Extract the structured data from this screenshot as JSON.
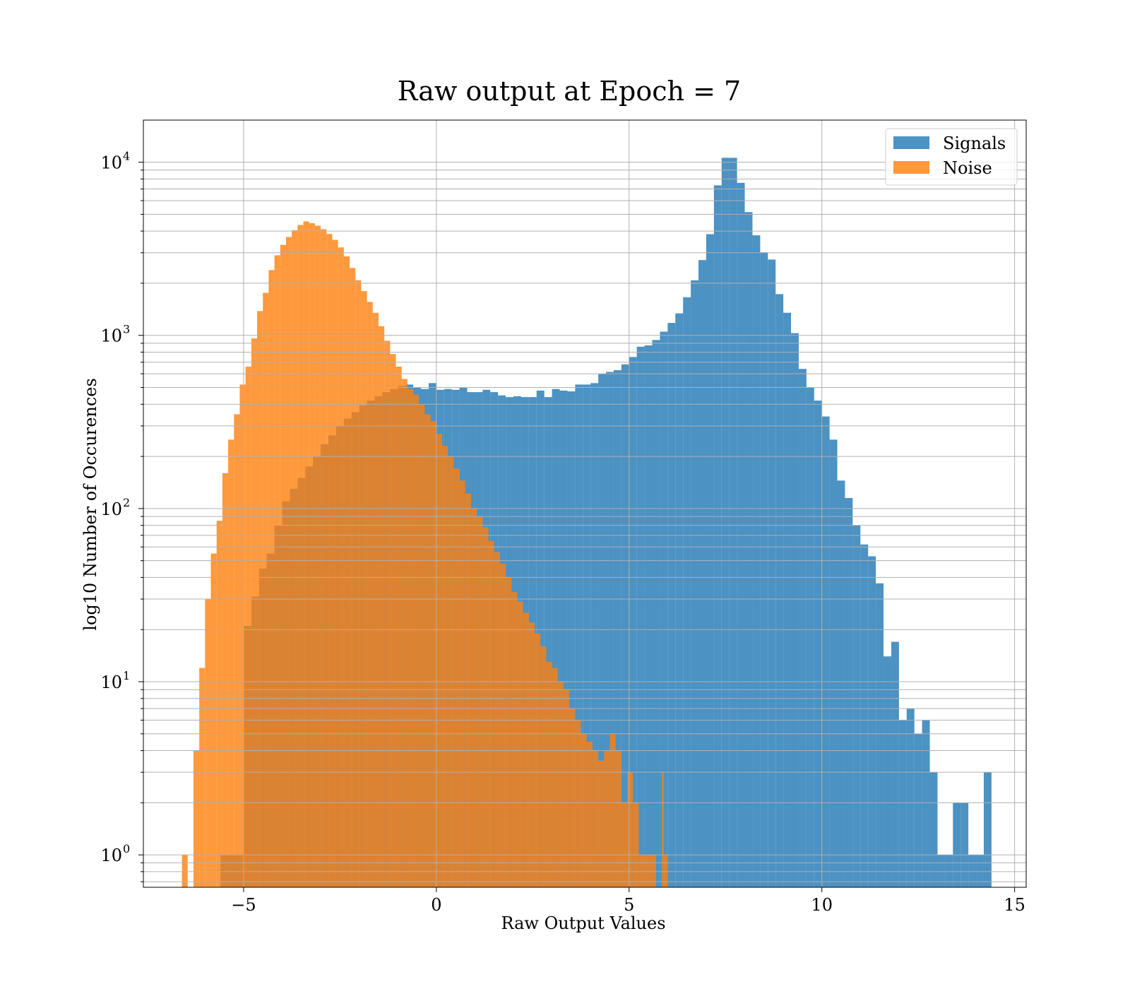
{
  "chart_data": {
    "type": "histogram",
    "title": "Raw output at Epoch = 7",
    "xlabel": "Raw Output Values",
    "ylabel": "log10 Number of Occurences",
    "xlim": [
      -7.6,
      15.3
    ],
    "ylim": [
      0.65,
      17500
    ],
    "yscale": "log",
    "grid": true,
    "legend_position": "top-right",
    "x_ticks": [
      {
        "value": -5,
        "label": "−5"
      },
      {
        "value": 0,
        "label": "0"
      },
      {
        "value": 5,
        "label": "5"
      },
      {
        "value": 10,
        "label": "10"
      },
      {
        "value": 15,
        "label": "15"
      }
    ],
    "y_ticks": [
      {
        "value": 1,
        "base": "10",
        "exp": "0"
      },
      {
        "value": 10,
        "base": "10",
        "exp": "1"
      },
      {
        "value": 100,
        "base": "10",
        "exp": "2"
      },
      {
        "value": 1000,
        "base": "10",
        "exp": "3"
      },
      {
        "value": 10000,
        "base": "10",
        "exp": "4"
      }
    ],
    "series": [
      {
        "name": "Signals",
        "color": "#1f77b4",
        "opacity": 0.8,
        "bins": [
          [
            -5.6,
            -5.0,
            1
          ],
          [
            -5.0,
            -4.8,
            21
          ],
          [
            -4.8,
            -4.6,
            31
          ],
          [
            -4.6,
            -4.4,
            45
          ],
          [
            -4.4,
            -4.2,
            55
          ],
          [
            -4.2,
            -4.0,
            80
          ],
          [
            -4.0,
            -3.8,
            110
          ],
          [
            -3.8,
            -3.6,
            130
          ],
          [
            -3.6,
            -3.4,
            150
          ],
          [
            -3.4,
            -3.2,
            175
          ],
          [
            -3.2,
            -3.0,
            200
          ],
          [
            -3.0,
            -2.8,
            235
          ],
          [
            -2.8,
            -2.6,
            265
          ],
          [
            -2.6,
            -2.4,
            300
          ],
          [
            -2.4,
            -2.2,
            330
          ],
          [
            -2.2,
            -2.0,
            360
          ],
          [
            -2.0,
            -1.8,
            395
          ],
          [
            -1.8,
            -1.6,
            420
          ],
          [
            -1.6,
            -1.4,
            445
          ],
          [
            -1.4,
            -1.2,
            470
          ],
          [
            -1.2,
            -1.0,
            490
          ],
          [
            -1.0,
            -0.8,
            510
          ],
          [
            -0.8,
            -0.6,
            520
          ],
          [
            -0.6,
            -0.4,
            500
          ],
          [
            -0.4,
            -0.2,
            490
          ],
          [
            -0.2,
            0.0,
            530
          ],
          [
            0.0,
            0.2,
            485
          ],
          [
            0.2,
            0.4,
            490
          ],
          [
            0.4,
            0.6,
            485
          ],
          [
            0.6,
            0.8,
            500
          ],
          [
            0.8,
            1.0,
            470
          ],
          [
            1.0,
            1.2,
            470
          ],
          [
            1.2,
            1.4,
            485
          ],
          [
            1.4,
            1.6,
            470
          ],
          [
            1.6,
            1.8,
            450
          ],
          [
            1.8,
            2.0,
            440
          ],
          [
            2.0,
            2.2,
            445
          ],
          [
            2.2,
            2.4,
            440
          ],
          [
            2.4,
            2.6,
            440
          ],
          [
            2.6,
            2.8,
            480
          ],
          [
            2.8,
            3.0,
            440
          ],
          [
            3.0,
            3.2,
            490
          ],
          [
            3.2,
            3.4,
            480
          ],
          [
            3.4,
            3.6,
            475
          ],
          [
            3.6,
            3.8,
            520
          ],
          [
            3.8,
            4.0,
            520
          ],
          [
            4.0,
            4.2,
            530
          ],
          [
            4.2,
            4.4,
            600
          ],
          [
            4.4,
            4.6,
            615
          ],
          [
            4.6,
            4.8,
            630
          ],
          [
            4.8,
            5.0,
            680
          ],
          [
            5.0,
            5.2,
            750
          ],
          [
            5.2,
            5.4,
            860
          ],
          [
            5.4,
            5.6,
            875
          ],
          [
            5.6,
            5.8,
            940
          ],
          [
            5.8,
            6.0,
            1050
          ],
          [
            6.0,
            6.2,
            1180
          ],
          [
            6.2,
            6.4,
            1340
          ],
          [
            6.4,
            6.6,
            1660
          ],
          [
            6.6,
            6.8,
            2080
          ],
          [
            6.8,
            7.0,
            2720
          ],
          [
            7.0,
            7.2,
            3840
          ],
          [
            7.2,
            7.4,
            7350
          ],
          [
            7.4,
            7.6,
            10600
          ],
          [
            7.6,
            7.8,
            10600
          ],
          [
            7.8,
            8.0,
            7600
          ],
          [
            8.0,
            8.2,
            5150
          ],
          [
            8.2,
            8.4,
            3780
          ],
          [
            8.4,
            8.6,
            3020
          ],
          [
            8.6,
            8.8,
            2740
          ],
          [
            8.8,
            9.0,
            1730
          ],
          [
            9.0,
            9.2,
            1350
          ],
          [
            9.2,
            9.4,
            1030
          ],
          [
            9.4,
            9.6,
            640
          ],
          [
            9.6,
            9.8,
            500
          ],
          [
            9.8,
            10.0,
            420
          ],
          [
            10.0,
            10.2,
            340
          ],
          [
            10.2,
            10.4,
            250
          ],
          [
            10.4,
            10.6,
            145
          ],
          [
            10.6,
            10.8,
            115
          ],
          [
            10.8,
            11.0,
            80
          ],
          [
            11.0,
            11.2,
            62
          ],
          [
            11.2,
            11.4,
            53
          ],
          [
            11.4,
            11.6,
            37
          ],
          [
            11.6,
            11.8,
            14
          ],
          [
            11.8,
            12.0,
            17
          ],
          [
            12.0,
            12.2,
            6
          ],
          [
            12.2,
            12.4,
            7
          ],
          [
            12.4,
            12.6,
            5
          ],
          [
            12.6,
            12.8,
            6
          ],
          [
            12.8,
            13.0,
            3
          ],
          [
            13.0,
            13.2,
            1
          ],
          [
            13.2,
            13.4,
            1
          ],
          [
            13.4,
            13.6,
            2
          ],
          [
            13.6,
            13.8,
            2
          ],
          [
            13.8,
            14.0,
            1
          ],
          [
            14.0,
            14.2,
            1
          ],
          [
            14.2,
            14.4,
            3
          ]
        ]
      },
      {
        "name": "Noise",
        "color": "#ff7f0e",
        "opacity": 0.8,
        "bins": [
          [
            -6.6,
            -6.45,
            1
          ],
          [
            -6.3,
            -6.15,
            4
          ],
          [
            -6.15,
            -6.0,
            12
          ],
          [
            -6.0,
            -5.85,
            30
          ],
          [
            -5.85,
            -5.7,
            55
          ],
          [
            -5.7,
            -5.55,
            85
          ],
          [
            -5.55,
            -5.4,
            160
          ],
          [
            -5.4,
            -5.25,
            250
          ],
          [
            -5.25,
            -5.1,
            350
          ],
          [
            -5.1,
            -4.95,
            520
          ],
          [
            -4.95,
            -4.8,
            660
          ],
          [
            -4.8,
            -4.65,
            960
          ],
          [
            -4.65,
            -4.5,
            1380
          ],
          [
            -4.5,
            -4.35,
            1760
          ],
          [
            -4.35,
            -4.2,
            2380
          ],
          [
            -4.2,
            -4.05,
            2900
          ],
          [
            -4.05,
            -3.9,
            3330
          ],
          [
            -3.9,
            -3.75,
            3700
          ],
          [
            -3.75,
            -3.6,
            4050
          ],
          [
            -3.6,
            -3.45,
            4340
          ],
          [
            -3.45,
            -3.3,
            4550
          ],
          [
            -3.3,
            -3.15,
            4440
          ],
          [
            -3.15,
            -3.0,
            4300
          ],
          [
            -3.0,
            -2.85,
            4100
          ],
          [
            -2.85,
            -2.7,
            3850
          ],
          [
            -2.7,
            -2.55,
            3560
          ],
          [
            -2.55,
            -2.4,
            3220
          ],
          [
            -2.4,
            -2.25,
            2860
          ],
          [
            -2.25,
            -2.1,
            2450
          ],
          [
            -2.1,
            -1.95,
            2080
          ],
          [
            -1.95,
            -1.8,
            1800
          ],
          [
            -1.8,
            -1.65,
            1560
          ],
          [
            -1.65,
            -1.5,
            1350
          ],
          [
            -1.5,
            -1.35,
            1130
          ],
          [
            -1.35,
            -1.2,
            930
          ],
          [
            -1.2,
            -1.05,
            780
          ],
          [
            -1.05,
            -0.9,
            660
          ],
          [
            -0.9,
            -0.75,
            560
          ],
          [
            -0.75,
            -0.6,
            490
          ],
          [
            -0.6,
            -0.45,
            455
          ],
          [
            -0.45,
            -0.3,
            400
          ],
          [
            -0.3,
            -0.15,
            350
          ],
          [
            -0.15,
            0.0,
            320
          ],
          [
            0.0,
            0.15,
            270
          ],
          [
            0.15,
            0.3,
            230
          ],
          [
            0.3,
            0.45,
            200
          ],
          [
            0.45,
            0.6,
            170
          ],
          [
            0.6,
            0.75,
            145
          ],
          [
            0.75,
            0.9,
            122
          ],
          [
            0.9,
            1.05,
            100
          ],
          [
            1.05,
            1.2,
            90
          ],
          [
            1.2,
            1.35,
            78
          ],
          [
            1.35,
            1.5,
            65
          ],
          [
            1.5,
            1.65,
            56
          ],
          [
            1.65,
            1.8,
            48
          ],
          [
            1.8,
            1.95,
            40
          ],
          [
            1.95,
            2.1,
            33
          ],
          [
            2.1,
            2.25,
            29
          ],
          [
            2.25,
            2.4,
            25
          ],
          [
            2.4,
            2.55,
            22
          ],
          [
            2.55,
            2.7,
            19
          ],
          [
            2.7,
            2.85,
            16
          ],
          [
            2.85,
            3.0,
            13
          ],
          [
            3.0,
            3.15,
            12
          ],
          [
            3.15,
            3.3,
            10
          ],
          [
            3.3,
            3.45,
            9
          ],
          [
            3.45,
            3.6,
            7
          ],
          [
            3.6,
            3.75,
            6
          ],
          [
            3.75,
            3.9,
            5
          ],
          [
            3.9,
            4.05,
            4.5
          ],
          [
            4.05,
            4.2,
            4
          ],
          [
            4.2,
            4.35,
            3.5
          ],
          [
            4.35,
            4.5,
            4
          ],
          [
            4.5,
            4.65,
            5
          ],
          [
            4.65,
            4.8,
            4
          ],
          [
            4.8,
            4.95,
            2
          ],
          [
            4.95,
            5.1,
            3
          ],
          [
            5.1,
            5.25,
            2
          ],
          [
            5.25,
            5.4,
            1
          ],
          [
            5.4,
            5.55,
            1
          ],
          [
            5.55,
            5.7,
            1
          ],
          [
            5.85,
            5.9,
            3
          ],
          [
            5.9,
            6.0,
            1
          ]
        ]
      }
    ]
  }
}
